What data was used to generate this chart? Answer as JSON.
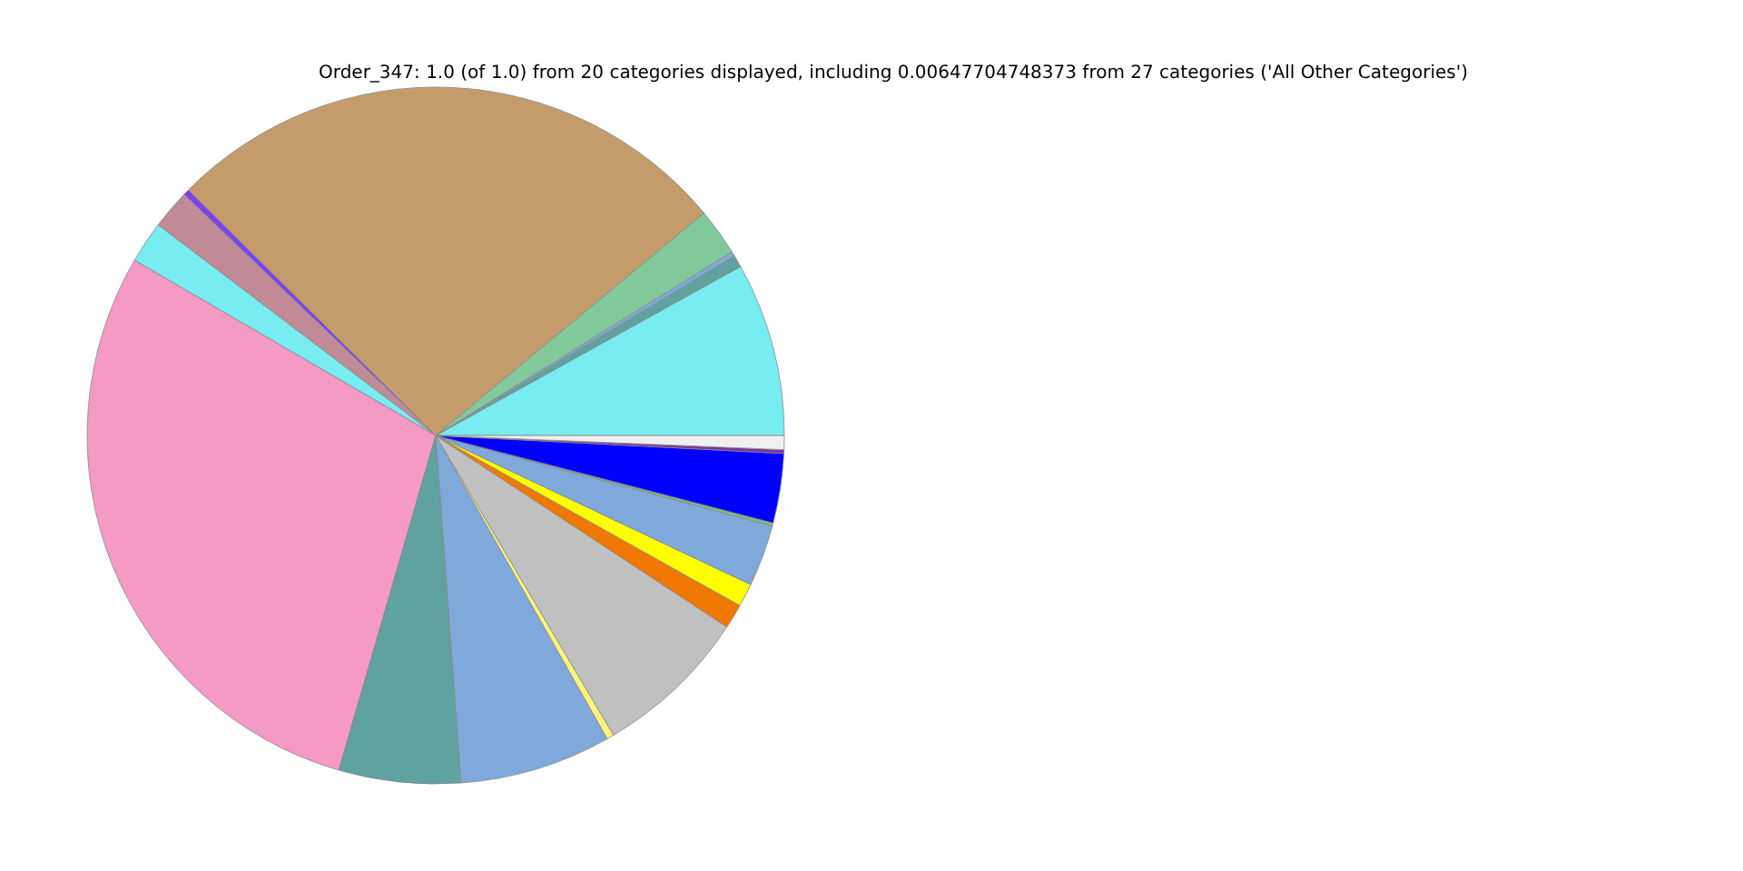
{
  "chart_data": {
    "type": "pie",
    "title": "Order_347: 1.0 (of 1.0) from 20 categories displayed, including 0.00647704748373 from 27 categories ('All Other Categories')",
    "categories": [
      null,
      null,
      null,
      null,
      null,
      null,
      null,
      null,
      null,
      null,
      null,
      null,
      null,
      null,
      null,
      null,
      null,
      null,
      null,
      null
    ],
    "values": [
      8.06,
      0.56,
      0.22,
      2.19,
      26.53,
      0.28,
      1.83,
      1.94,
      28.91,
      5.64,
      7.03,
      0.33,
      7.22,
      1.14,
      1.08,
      2.86,
      0.14,
      3.22,
      0.17,
      0.65
    ],
    "colors": [
      "#77ecf1",
      "#5fa2a0",
      "#7fa9db",
      "#81c99b",
      "#c49c6b",
      "#8040f0",
      "#c08b96",
      "#77ecf1",
      "#f49ac4",
      "#5fa2a0",
      "#7fa9db",
      "#fff47a",
      "#c0c0c0",
      "#f07800",
      "#ffff00",
      "#7fa9db",
      "#77c47a",
      "#0000ff",
      "#8030a0",
      "#f0f0f0"
    ]
  }
}
